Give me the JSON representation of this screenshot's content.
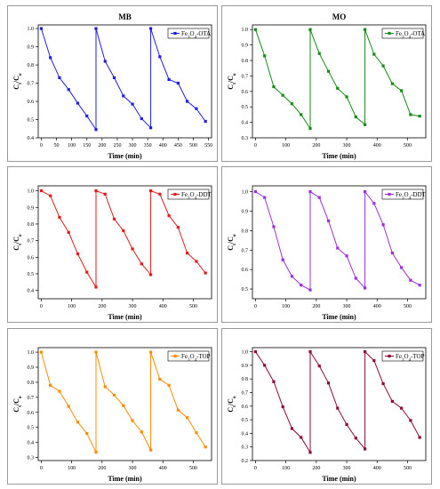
{
  "chart_data": [
    {
      "type": "line",
      "title": "MB",
      "xlabel": "Time (min)",
      "ylabel": "C_t/C_o",
      "xlim": [
        -10,
        560
      ],
      "ylim": [
        0.4,
        1.02
      ],
      "xticks": [
        0,
        50,
        100,
        150,
        200,
        250,
        300,
        350,
        400,
        450,
        500,
        550
      ],
      "yticks": [
        0.4,
        0.5,
        0.6,
        0.7,
        0.8,
        0.9,
        1.0
      ],
      "legend_position": "top-right",
      "color": "#1f1fe0",
      "marker": "square",
      "series": [
        {
          "name": "Fe3O4-OTA",
          "x": [
            0,
            30,
            60,
            90,
            120,
            150,
            180,
            180,
            210,
            240,
            270,
            300,
            330,
            360,
            360,
            390,
            420,
            450,
            480,
            510,
            540
          ],
          "y": [
            1.0,
            0.84,
            0.73,
            0.665,
            0.59,
            0.52,
            0.445,
            1.0,
            0.82,
            0.73,
            0.63,
            0.585,
            0.505,
            0.455,
            1.0,
            0.845,
            0.72,
            0.7,
            0.6,
            0.56,
            0.49
          ]
        }
      ]
    },
    {
      "type": "line",
      "title": "MO",
      "xlabel": "Time (min)",
      "ylabel": "C_t/C_o",
      "xlim": [
        -10,
        560
      ],
      "ylim": [
        0.3,
        1.03
      ],
      "xticks": [
        0,
        100,
        200,
        300,
        400,
        500
      ],
      "yticks": [
        0.3,
        0.4,
        0.5,
        0.6,
        0.7,
        0.8,
        0.9,
        1.0
      ],
      "legend_position": "top-right",
      "color": "#168a16",
      "marker": "square",
      "series": [
        {
          "name": "Fe3O4-OTA",
          "x": [
            0,
            30,
            60,
            90,
            120,
            150,
            180,
            180,
            210,
            240,
            270,
            300,
            330,
            360,
            360,
            390,
            420,
            450,
            480,
            510,
            540
          ],
          "y": [
            1.0,
            0.83,
            0.63,
            0.575,
            0.52,
            0.45,
            0.36,
            1.0,
            0.845,
            0.73,
            0.62,
            0.565,
            0.435,
            0.385,
            1.0,
            0.84,
            0.765,
            0.65,
            0.605,
            0.45,
            0.44
          ]
        }
      ]
    },
    {
      "type": "line",
      "title": "",
      "xlabel": "Time (min)",
      "ylabel": "C_t/C_o",
      "xlim": [
        -10,
        560
      ],
      "ylim": [
        0.35,
        1.03
      ],
      "xticks": [
        0,
        100,
        200,
        300,
        400,
        500
      ],
      "yticks": [
        0.4,
        0.5,
        0.6,
        0.7,
        0.8,
        0.9,
        1.0
      ],
      "legend_position": "top-right",
      "color": "#e41a1a",
      "marker": "square",
      "series": [
        {
          "name": "Fe3O4-DDT",
          "x": [
            0,
            30,
            60,
            90,
            120,
            150,
            180,
            180,
            210,
            240,
            270,
            300,
            330,
            360,
            360,
            390,
            420,
            450,
            480,
            510,
            540
          ],
          "y": [
            1.0,
            0.97,
            0.84,
            0.75,
            0.62,
            0.51,
            0.42,
            1.0,
            0.98,
            0.83,
            0.76,
            0.65,
            0.56,
            0.495,
            1.0,
            0.98,
            0.85,
            0.78,
            0.625,
            0.575,
            0.505
          ]
        }
      ]
    },
    {
      "type": "line",
      "title": "",
      "xlabel": "Time (min)",
      "ylabel": "C_t/C_o",
      "xlim": [
        -10,
        560
      ],
      "ylim": [
        0.45,
        1.03
      ],
      "xticks": [
        0,
        100,
        200,
        300,
        400,
        500
      ],
      "yticks": [
        0.5,
        0.6,
        0.7,
        0.8,
        0.9,
        1.0
      ],
      "legend_position": "top-right",
      "color": "#9b30e0",
      "marker": "square",
      "series": [
        {
          "name": "Fe3O4-DDT",
          "x": [
            0,
            30,
            60,
            90,
            120,
            150,
            180,
            180,
            210,
            240,
            270,
            300,
            330,
            360,
            360,
            390,
            420,
            450,
            480,
            510,
            540
          ],
          "y": [
            1.0,
            0.97,
            0.82,
            0.65,
            0.565,
            0.52,
            0.495,
            1.0,
            0.97,
            0.85,
            0.71,
            0.67,
            0.555,
            0.505,
            1.0,
            0.94,
            0.83,
            0.685,
            0.61,
            0.545,
            0.52
          ]
        }
      ]
    },
    {
      "type": "line",
      "title": "",
      "xlabel": "Time (min)",
      "ylabel": "C_t/C_o",
      "xlim": [
        -10,
        560
      ],
      "ylim": [
        0.28,
        1.03
      ],
      "xticks": [
        0,
        100,
        200,
        300,
        400,
        500
      ],
      "yticks": [
        0.3,
        0.4,
        0.5,
        0.6,
        0.7,
        0.8,
        0.9,
        1.0
      ],
      "legend_position": "top-right",
      "color": "#ff8c00",
      "marker": "square",
      "series": [
        {
          "name": "Fe3O4-TOP",
          "x": [
            0,
            30,
            60,
            90,
            120,
            150,
            180,
            180,
            210,
            240,
            270,
            300,
            330,
            360,
            360,
            390,
            420,
            450,
            480,
            510,
            540
          ],
          "y": [
            1.0,
            0.78,
            0.74,
            0.64,
            0.535,
            0.46,
            0.335,
            1.0,
            0.77,
            0.715,
            0.645,
            0.545,
            0.47,
            0.35,
            1.0,
            0.82,
            0.78,
            0.615,
            0.565,
            0.465,
            0.37
          ]
        }
      ]
    },
    {
      "type": "line",
      "title": "",
      "xlabel": "Time (min)",
      "ylabel": "C_t/C_o",
      "xlim": [
        -10,
        560
      ],
      "ylim": [
        0.2,
        1.03
      ],
      "xticks": [
        0,
        100,
        200,
        300,
        400,
        500
      ],
      "yticks": [
        0.2,
        0.3,
        0.4,
        0.5,
        0.6,
        0.7,
        0.8,
        0.9,
        1.0
      ],
      "legend_position": "top-right",
      "color": "#8b0a38",
      "marker": "square",
      "series": [
        {
          "name": "Fe3O4-TOP",
          "x": [
            0,
            30,
            60,
            90,
            120,
            150,
            180,
            180,
            210,
            240,
            270,
            300,
            330,
            360,
            360,
            390,
            420,
            450,
            480,
            510,
            540
          ],
          "y": [
            1.0,
            0.9,
            0.78,
            0.595,
            0.435,
            0.37,
            0.26,
            1.0,
            0.895,
            0.77,
            0.585,
            0.465,
            0.365,
            0.285,
            1.0,
            0.935,
            0.765,
            0.635,
            0.585,
            0.495,
            0.37
          ]
        }
      ]
    }
  ]
}
